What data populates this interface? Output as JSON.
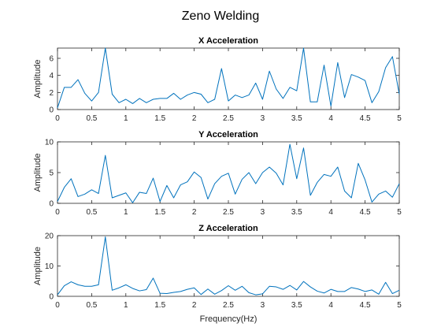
{
  "figure": {
    "title": "Zeno Welding",
    "line_color": "#0072BD",
    "axis_color": "#262626"
  },
  "chart_data": [
    {
      "type": "line",
      "title": "X Acceleration",
      "xlabel": "",
      "ylabel": "Amplitude",
      "xlim": [
        0,
        5
      ],
      "ylim": [
        0,
        7.2
      ],
      "xticks": [
        0,
        0.5,
        1,
        1.5,
        2,
        2.5,
        3,
        3.5,
        4,
        4.5,
        5
      ],
      "xtick_labels": [
        "0",
        "0.5",
        "1",
        "1.5",
        "2",
        "2.5",
        "3",
        "3.5",
        "4",
        "4.5",
        "5"
      ],
      "yticks": [
        0,
        2,
        4,
        6
      ],
      "ytick_labels": [
        "0",
        "2",
        "4",
        "6"
      ],
      "grid": false,
      "series": [
        {
          "x": [
            0,
            0.1,
            0.2,
            0.3,
            0.4,
            0.5,
            0.6,
            0.7,
            0.8,
            0.9,
            1.0,
            1.1,
            1.2,
            1.3,
            1.4,
            1.5,
            1.6,
            1.7,
            1.8,
            1.9,
            2.0,
            2.1,
            2.2,
            2.3,
            2.4,
            2.5,
            2.6,
            2.7,
            2.8,
            2.9,
            3.0,
            3.1,
            3.2,
            3.3,
            3.4,
            3.5,
            3.6,
            3.7,
            3.8,
            3.9,
            4.0,
            4.1,
            4.2,
            4.3,
            4.4,
            4.5,
            4.6,
            4.7,
            4.8,
            4.9,
            5.0
          ],
          "values": [
            0.2,
            2.6,
            2.6,
            3.5,
            1.9,
            1.0,
            2.0,
            7.2,
            1.8,
            0.8,
            1.2,
            0.7,
            1.3,
            0.8,
            1.2,
            1.3,
            1.3,
            1.9,
            1.2,
            1.7,
            2.0,
            1.8,
            0.8,
            1.2,
            4.8,
            1.0,
            1.7,
            1.4,
            1.7,
            3.1,
            1.2,
            4.5,
            2.4,
            1.3,
            2.6,
            2.2,
            7.2,
            0.9,
            0.9,
            5.2,
            0.4,
            5.5,
            1.4,
            4.1,
            3.8,
            3.4,
            0.8,
            2.1,
            4.9,
            6.2,
            1.8
          ]
        }
      ]
    },
    {
      "type": "line",
      "title": "Y Acceleration",
      "xlabel": "",
      "ylabel": "Amplitude",
      "xlim": [
        0,
        5
      ],
      "ylim": [
        0,
        10
      ],
      "xticks": [
        0,
        0.5,
        1,
        1.5,
        2,
        2.5,
        3,
        3.5,
        4,
        4.5,
        5
      ],
      "xtick_labels": [
        "0",
        "0.5",
        "1",
        "1.5",
        "2",
        "2.5",
        "3",
        "3.5",
        "4",
        "4.5",
        "5"
      ],
      "yticks": [
        0,
        5,
        10
      ],
      "ytick_labels": [
        "0",
        "5",
        "10"
      ],
      "grid": false,
      "series": [
        {
          "x": [
            0,
            0.1,
            0.2,
            0.3,
            0.4,
            0.5,
            0.6,
            0.7,
            0.8,
            0.9,
            1.0,
            1.1,
            1.2,
            1.3,
            1.4,
            1.5,
            1.6,
            1.7,
            1.8,
            1.9,
            2.0,
            2.1,
            2.2,
            2.3,
            2.4,
            2.5,
            2.6,
            2.7,
            2.8,
            2.9,
            3.0,
            3.1,
            3.2,
            3.3,
            3.4,
            3.5,
            3.6,
            3.7,
            3.8,
            3.9,
            4.0,
            4.1,
            4.2,
            4.3,
            4.4,
            4.5,
            4.6,
            4.7,
            4.8,
            4.9,
            5.0
          ],
          "values": [
            0.3,
            2.6,
            4.0,
            1.1,
            1.5,
            2.2,
            1.6,
            7.8,
            0.9,
            1.3,
            1.7,
            0.1,
            1.8,
            1.6,
            4.1,
            0.3,
            2.9,
            0.9,
            3.0,
            3.5,
            5.1,
            4.2,
            0.7,
            3.2,
            4.4,
            4.9,
            1.5,
            3.9,
            5.0,
            3.2,
            5.0,
            5.9,
            4.9,
            3.0,
            9.6,
            4.0,
            9.0,
            1.3,
            3.4,
            4.7,
            4.4,
            5.9,
            2.0,
            0.9,
            6.5,
            3.8,
            0.2,
            1.5,
            2.0,
            1.0,
            3.2
          ]
        }
      ]
    },
    {
      "type": "line",
      "title": "Z Acceleration",
      "xlabel": "Frequency(Hz)",
      "ylabel": "Amplitude",
      "xlim": [
        0,
        5
      ],
      "ylim": [
        0,
        20
      ],
      "xticks": [
        0,
        0.5,
        1,
        1.5,
        2,
        2.5,
        3,
        3.5,
        4,
        4.5,
        5
      ],
      "xtick_labels": [
        "0",
        "0.5",
        "1",
        "1.5",
        "2",
        "2.5",
        "3",
        "3.5",
        "4",
        "4.5",
        "5"
      ],
      "yticks": [
        0,
        10,
        20
      ],
      "ytick_labels": [
        "0",
        "10",
        "20"
      ],
      "grid": false,
      "series": [
        {
          "x": [
            0,
            0.1,
            0.2,
            0.3,
            0.4,
            0.5,
            0.6,
            0.7,
            0.8,
            0.9,
            1.0,
            1.1,
            1.2,
            1.3,
            1.4,
            1.5,
            1.6,
            1.7,
            1.8,
            1.9,
            2.0,
            2.1,
            2.2,
            2.3,
            2.4,
            2.5,
            2.6,
            2.7,
            2.8,
            2.9,
            3.0,
            3.1,
            3.2,
            3.3,
            3.4,
            3.5,
            3.6,
            3.7,
            3.8,
            3.9,
            4.0,
            4.1,
            4.2,
            4.3,
            4.4,
            4.5,
            4.6,
            4.7,
            4.8,
            4.9,
            5.0
          ],
          "values": [
            0.5,
            3.5,
            4.8,
            3.8,
            3.3,
            3.3,
            3.8,
            19.6,
            2.0,
            2.8,
            3.8,
            2.6,
            1.8,
            2.2,
            6.0,
            1.0,
            0.9,
            1.3,
            1.6,
            2.3,
            2.8,
            0.6,
            2.4,
            0.7,
            1.9,
            3.5,
            2.0,
            3.3,
            1.2,
            0.5,
            0.8,
            3.3,
            3.1,
            2.3,
            3.6,
            2.1,
            4.9,
            3.1,
            1.7,
            1.1,
            2.3,
            1.6,
            1.6,
            2.9,
            2.4,
            1.6,
            2.1,
            0.7,
            4.6,
            0.9,
            2.0
          ]
        }
      ]
    }
  ]
}
